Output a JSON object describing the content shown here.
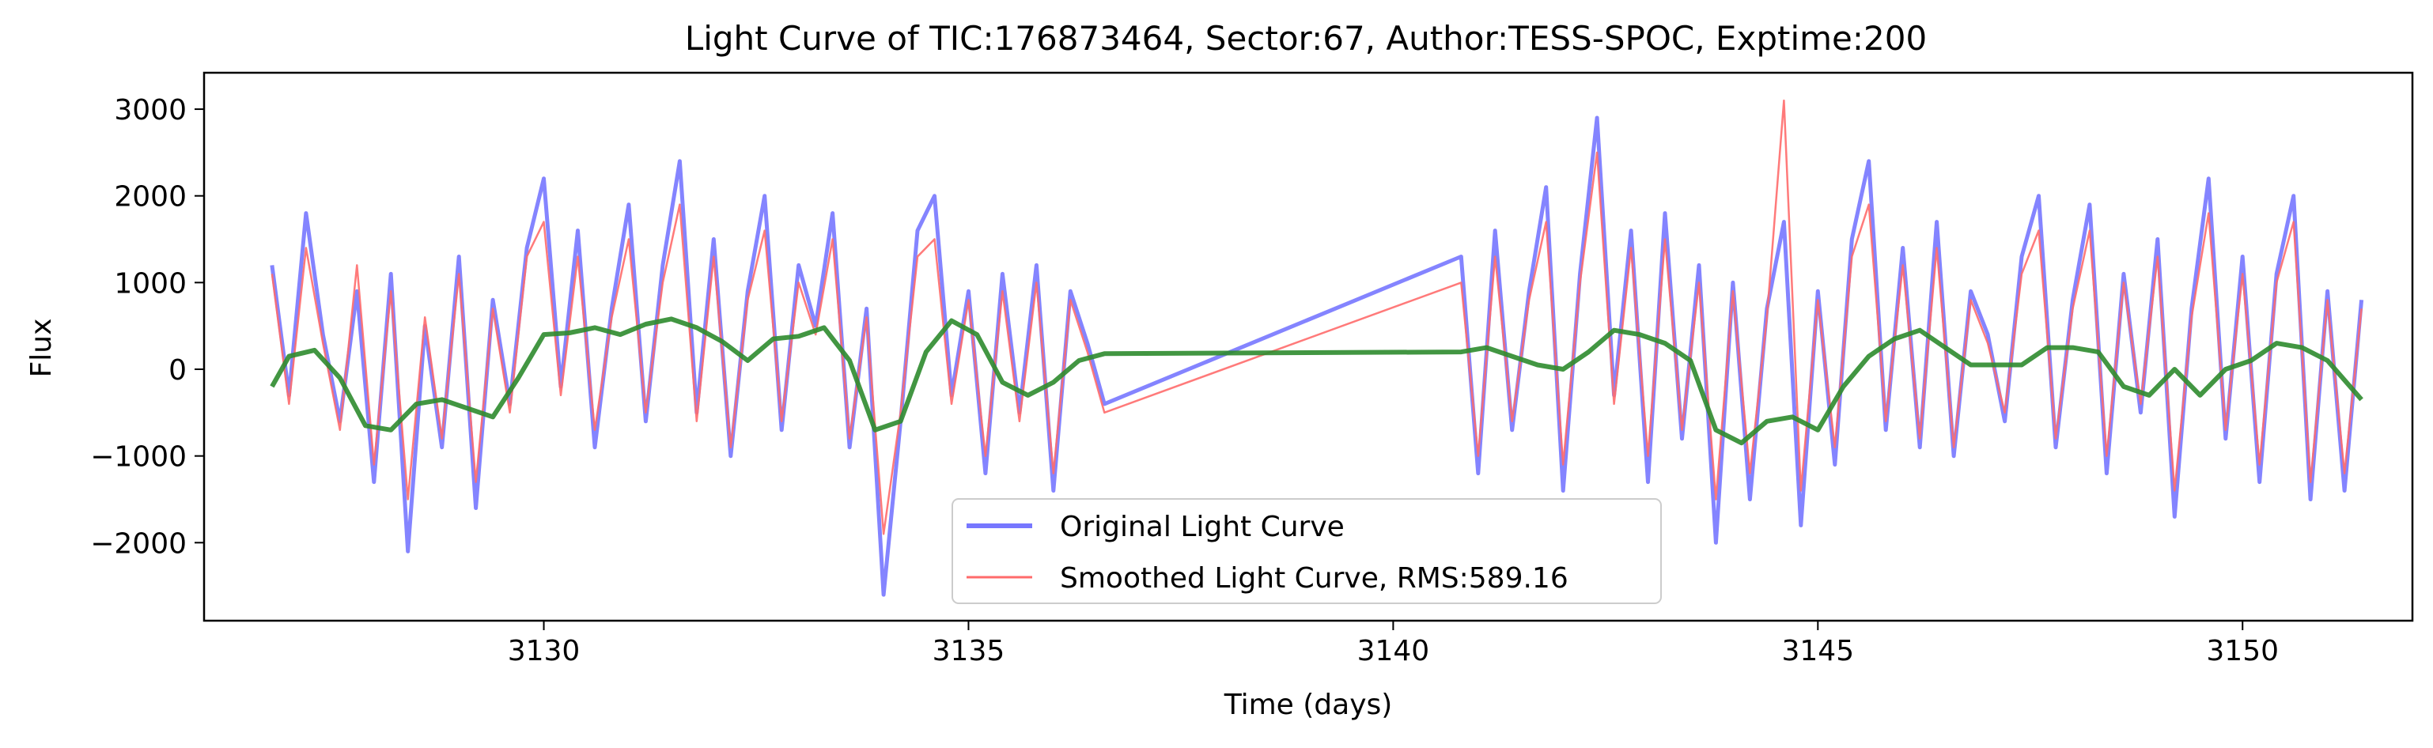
{
  "chart_data": {
    "type": "line",
    "title": "Light Curve of TIC:176873464, Sector:67, Author:TESS-SPOC, Exptime:200",
    "xlabel": "Time (days)",
    "ylabel": "Flux",
    "xlim": [
      3126.0,
      3152.0
    ],
    "ylim": [
      -2900,
      3420
    ],
    "xticks": [
      3130,
      3135,
      3140,
      3145,
      3150
    ],
    "yticks": [
      -2000,
      -1000,
      0,
      1000,
      2000,
      3000
    ],
    "xtick_labels": [
      "3130",
      "3135",
      "3140",
      "3145",
      "3150"
    ],
    "ytick_labels": [
      "−2000",
      "−1000",
      "0",
      "1000",
      "2000",
      "3000"
    ],
    "grid": false,
    "legend_position": "bottom-center",
    "series": [
      {
        "name": "Original Light Curve",
        "color": "#7777ff",
        "x": [
          3126.8,
          3127.0,
          3127.2,
          3127.4,
          3127.6,
          3127.8,
          3128.0,
          3128.2,
          3128.4,
          3128.6,
          3128.8,
          3129.0,
          3129.2,
          3129.4,
          3129.6,
          3129.8,
          3130.0,
          3130.2,
          3130.4,
          3130.6,
          3130.8,
          3131.0,
          3131.2,
          3131.4,
          3131.6,
          3131.8,
          3132.0,
          3132.2,
          3132.4,
          3132.6,
          3132.8,
          3133.0,
          3133.2,
          3133.4,
          3133.6,
          3133.8,
          3134.0,
          3134.2,
          3134.4,
          3134.6,
          3134.8,
          3135.0,
          3135.2,
          3135.4,
          3135.6,
          3135.8,
          3136.0,
          3136.2,
          3136.4,
          3136.6,
          3140.8,
          3141.0,
          3141.2,
          3141.4,
          3141.6,
          3141.8,
          3142.0,
          3142.2,
          3142.4,
          3142.6,
          3142.8,
          3143.0,
          3143.2,
          3143.4,
          3143.6,
          3143.8,
          3144.0,
          3144.2,
          3144.4,
          3144.6,
          3144.8,
          3145.0,
          3145.2,
          3145.4,
          3145.6,
          3145.8,
          3146.0,
          3146.2,
          3146.4,
          3146.6,
          3146.8,
          3147.0,
          3147.2,
          3147.4,
          3147.6,
          3147.8,
          3148.0,
          3148.2,
          3148.4,
          3148.6,
          3148.8,
          3149.0,
          3149.2,
          3149.4,
          3149.6,
          3149.8,
          3150.0,
          3150.2,
          3150.4,
          3150.6,
          3150.8,
          3151.0,
          3151.2,
          3151.4
        ],
        "y": [
          1200,
          -300,
          1800,
          400,
          -600,
          900,
          -1300,
          1100,
          -2100,
          500,
          -900,
          1300,
          -1600,
          800,
          -400,
          1400,
          2200,
          -200,
          1600,
          -900,
          700,
          1900,
          -600,
          1200,
          2400,
          -500,
          1500,
          -1000,
          900,
          2000,
          -700,
          1200,
          500,
          1800,
          -900,
          700,
          -2600,
          -600,
          1600,
          2000,
          -300,
          900,
          -1200,
          1100,
          -500,
          1200,
          -1400,
          900,
          300,
          -400,
          1300,
          -1200,
          1600,
          -700,
          900,
          2100,
          -1400,
          1100,
          2900,
          -300,
          1600,
          -1300,
          1800,
          -800,
          1200,
          -2000,
          1000,
          -1500,
          700,
          1700,
          -1800,
          900,
          -1100,
          1500,
          2400,
          -700,
          1400,
          -900,
          1700,
          -1000,
          900,
          400,
          -600,
          1300,
          2000,
          -900,
          800,
          1900,
          -1200,
          1100,
          -500,
          1500,
          -1700,
          700,
          2200,
          -800,
          1300,
          -1300,
          1100,
          2000,
          -1500,
          900,
          -1400,
          800
        ]
      },
      {
        "name": "Smoothed Light Curve, RMS:589.16",
        "color": "#ff6b6b",
        "x": [
          3126.8,
          3127.0,
          3127.2,
          3127.4,
          3127.6,
          3127.8,
          3128.0,
          3128.2,
          3128.4,
          3128.6,
          3128.8,
          3129.0,
          3129.2,
          3129.4,
          3129.6,
          3129.8,
          3130.0,
          3130.2,
          3130.4,
          3130.6,
          3130.8,
          3131.0,
          3131.2,
          3131.4,
          3131.6,
          3131.8,
          3132.0,
          3132.2,
          3132.4,
          3132.6,
          3132.8,
          3133.0,
          3133.2,
          3133.4,
          3133.6,
          3133.8,
          3134.0,
          3134.2,
          3134.4,
          3134.6,
          3134.8,
          3135.0,
          3135.2,
          3135.4,
          3135.6,
          3135.8,
          3136.0,
          3136.2,
          3136.4,
          3136.6,
          3140.8,
          3141.0,
          3141.2,
          3141.4,
          3141.6,
          3141.8,
          3142.0,
          3142.2,
          3142.4,
          3142.6,
          3142.8,
          3143.0,
          3143.2,
          3143.4,
          3143.6,
          3143.8,
          3144.0,
          3144.2,
          3144.4,
          3144.6,
          3144.8,
          3145.0,
          3145.2,
          3145.4,
          3145.6,
          3145.8,
          3146.0,
          3146.2,
          3146.4,
          3146.6,
          3146.8,
          3147.0,
          3147.2,
          3147.4,
          3147.6,
          3147.8,
          3148.0,
          3148.2,
          3148.4,
          3148.6,
          3148.8,
          3149.0,
          3149.2,
          3149.4,
          3149.6,
          3149.8,
          3150.0,
          3150.2,
          3150.4,
          3150.6,
          3150.8,
          3151.0,
          3151.2,
          3151.4
        ],
        "y": [
          1100,
          -400,
          1400,
          300,
          -700,
          1200,
          -1100,
          900,
          -1500,
          600,
          -800,
          1100,
          -1300,
          700,
          -500,
          1300,
          1700,
          -300,
          1300,
          -700,
          600,
          1500,
          -500,
          1000,
          1900,
          -600,
          1300,
          -900,
          800,
          1600,
          -600,
          1000,
          400,
          1500,
          -800,
          600,
          -1900,
          -500,
          1300,
          1500,
          -400,
          800,
          -1000,
          900,
          -600,
          1000,
          -1200,
          800,
          200,
          -500,
          1000,
          -1000,
          1300,
          -600,
          800,
          1700,
          -1100,
          1000,
          2500,
          -400,
          1400,
          -1000,
          1500,
          -700,
          1000,
          -1500,
          900,
          -1200,
          600,
          3100,
          -1400,
          800,
          -900,
          1300,
          1900,
          -600,
          1200,
          -800,
          1400,
          -900,
          800,
          300,
          -500,
          1100,
          1600,
          -800,
          700,
          1600,
          -1000,
          1000,
          -400,
          1300,
          -1400,
          600,
          1800,
          -700,
          1100,
          -1100,
          1000,
          1700,
          -1300,
          800,
          -1200,
          700
        ]
      },
      {
        "name": "",
        "color": "#2e8b2e",
        "x": [
          3126.8,
          3127.0,
          3127.3,
          3127.6,
          3127.9,
          3128.2,
          3128.5,
          3128.8,
          3129.1,
          3129.4,
          3129.7,
          3130.0,
          3130.3,
          3130.6,
          3130.9,
          3131.2,
          3131.5,
          3131.8,
          3132.1,
          3132.4,
          3132.7,
          3133.0,
          3133.3,
          3133.6,
          3133.9,
          3134.2,
          3134.5,
          3134.8,
          3135.1,
          3135.4,
          3135.7,
          3136.0,
          3136.3,
          3136.6,
          3140.8,
          3141.1,
          3141.4,
          3141.7,
          3142.0,
          3142.3,
          3142.6,
          3142.9,
          3143.2,
          3143.5,
          3143.8,
          3144.1,
          3144.4,
          3144.7,
          3145.0,
          3145.3,
          3145.6,
          3145.9,
          3146.2,
          3146.5,
          3146.8,
          3147.1,
          3147.4,
          3147.7,
          3148.0,
          3148.3,
          3148.6,
          3148.9,
          3149.2,
          3149.5,
          3149.8,
          3150.1,
          3150.4,
          3150.7,
          3151.0,
          3151.4
        ],
        "y": [
          -200,
          150,
          220,
          -100,
          -650,
          -700,
          -400,
          -350,
          -450,
          -550,
          -100,
          400,
          420,
          480,
          400,
          520,
          580,
          480,
          320,
          100,
          350,
          380,
          480,
          100,
          -700,
          -600,
          200,
          560,
          400,
          -150,
          -300,
          -150,
          100,
          180,
          200,
          250,
          150,
          50,
          0,
          200,
          450,
          400,
          300,
          100,
          -700,
          -850,
          -600,
          -550,
          -700,
          -200,
          150,
          350,
          450,
          250,
          50,
          50,
          50,
          250,
          250,
          200,
          -200,
          -300,
          0,
          -300,
          0,
          100,
          300,
          250,
          100,
          -350
        ]
      }
    ]
  }
}
